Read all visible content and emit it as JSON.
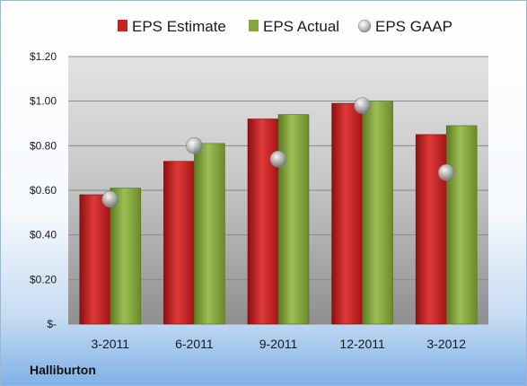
{
  "company_label": "Halliburton",
  "colors": {
    "estimate": "#cc1f1f",
    "actual": "#84a63a",
    "gaap": "#b9bcc0"
  },
  "chart_data": {
    "type": "bar",
    "categories": [
      "3-2011",
      "6-2011",
      "9-2011",
      "12-2011",
      "3-2012"
    ],
    "series": [
      {
        "name": "EPS Estimate",
        "values": [
          0.58,
          0.73,
          0.92,
          0.99,
          0.85
        ]
      },
      {
        "name": "EPS Actual",
        "values": [
          0.61,
          0.81,
          0.94,
          1.0,
          0.89
        ]
      },
      {
        "name": "EPS GAAP",
        "values": [
          0.56,
          0.8,
          0.74,
          0.98,
          0.68
        ],
        "style": "marker"
      }
    ],
    "ylim": [
      0,
      1.2
    ],
    "yticks": [
      0,
      0.2,
      0.4,
      0.6,
      0.8,
      1.0,
      1.2
    ],
    "ytick_labels": [
      "$-",
      "$0.20",
      "$0.40",
      "$0.60",
      "$0.80",
      "$1.00",
      "$1.20"
    ],
    "legend_position": "top",
    "grid": true
  }
}
